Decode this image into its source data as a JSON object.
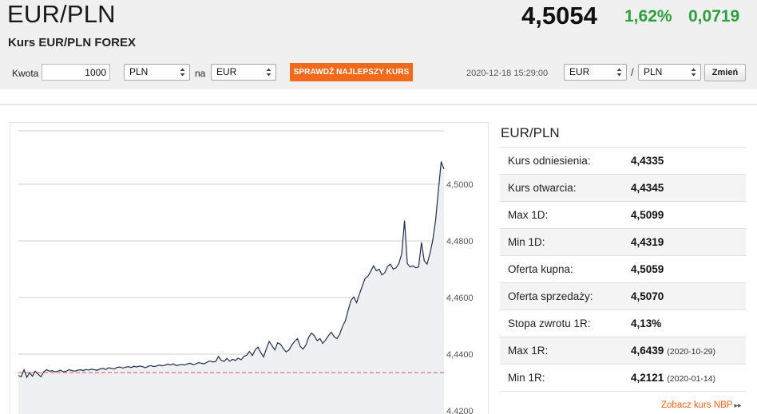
{
  "header": {
    "pair": "EUR/PLN",
    "subtitle": "Kurs EUR/PLN FOREX",
    "rate": "4,5054",
    "change_pct": "1,62%",
    "change_abs": "0,0719",
    "change_color": "#2e9e3e"
  },
  "toolbar": {
    "amount_label": "Kwota",
    "amount_value": "1000",
    "from_currency": "PLN",
    "to_label": "na",
    "to_currency": "EUR",
    "best_rate_button": "SPRAWDŹ NAJLEPSZY KURS",
    "best_rate_color": "#f26b1d",
    "timestamp": "2020-12-18 15:29:00",
    "base_currency": "EUR",
    "separator": "/",
    "quote_currency": "PLN",
    "change_button": "Zmień"
  },
  "stats": {
    "title": "EUR/PLN",
    "rows": [
      {
        "label": "Kurs odniesienia:",
        "value": "4,4335",
        "date": ""
      },
      {
        "label": "Kurs otwarcia:",
        "value": "4,4345",
        "date": ""
      },
      {
        "label": "Max 1D:",
        "value": "4,5099",
        "date": ""
      },
      {
        "label": "Min 1D:",
        "value": "4,4319",
        "date": ""
      },
      {
        "label": "Oferta kupna:",
        "value": "4,5059",
        "date": ""
      },
      {
        "label": "Oferta sprzedaży:",
        "value": "4,5070",
        "date": ""
      },
      {
        "label": "Stopa zwrotu 1R:",
        "value": "4,13%",
        "date": ""
      },
      {
        "label": "Max 1R:",
        "value": "4,6439",
        "date": "(2020-10-29)"
      },
      {
        "label": "Min 1R:",
        "value": "4,2121",
        "date": "(2020-01-14)"
      }
    ],
    "nbp_link": "Zobacz kurs NBP",
    "nbp_arrow": "▸▸"
  },
  "chart_data": {
    "type": "area",
    "title": "",
    "xlabel": "",
    "ylabel": "",
    "ylim": [
      4.42,
      4.51
    ],
    "y_ticks": [
      "4,4200",
      "4,4400",
      "4,4600",
      "4,4800",
      "4,5000"
    ],
    "y_tick_values": [
      4.42,
      4.44,
      4.46,
      4.48,
      4.5
    ],
    "reference_line": 4.4335,
    "reference_color": "#e05050",
    "line_color": "#1f2f4a",
    "fill_color": "#eef0f4",
    "grid": true,
    "series": [
      {
        "values": [
          4.4325,
          4.432,
          4.4345,
          4.4318,
          4.4335,
          4.4322,
          4.434,
          4.433,
          4.432,
          4.4338,
          4.4345,
          4.434,
          4.4342,
          4.4338,
          4.434,
          4.4343,
          4.4338,
          4.434,
          4.4345,
          4.4342,
          4.434,
          4.4343,
          4.4345,
          4.4342,
          4.4346,
          4.4344,
          4.4347,
          4.4345,
          4.4343,
          4.4348,
          4.435,
          4.4346,
          4.4352,
          4.435,
          4.4348,
          4.4353,
          4.4355,
          4.4351,
          4.4354,
          4.4356,
          4.4353,
          4.4357,
          4.4355,
          4.4358,
          4.4356,
          4.4352,
          4.4357,
          4.436,
          4.4356,
          4.4358,
          4.4362,
          4.4359,
          4.4361,
          4.4365,
          4.4362,
          4.4366,
          4.436,
          4.4362,
          4.4364,
          4.4362,
          4.4366,
          4.4368,
          4.4363,
          4.4366,
          4.437,
          4.4368,
          4.4366,
          4.4372,
          4.4376,
          4.4372,
          4.4374,
          4.4392,
          4.4378,
          4.4375,
          4.4385,
          4.4375,
          4.4382,
          4.4378,
          4.4386,
          4.438,
          4.4392,
          4.4396,
          4.441,
          4.4395,
          4.4415,
          4.4425,
          4.4405,
          4.439,
          4.442,
          4.4445,
          4.443,
          4.4415,
          4.444,
          4.4435,
          4.442,
          4.4408,
          4.4415,
          4.4432,
          4.4445,
          4.4455,
          4.4428,
          4.4418,
          4.4432,
          4.446,
          4.4475,
          4.4465,
          4.4448,
          4.4455,
          4.4438,
          4.445,
          4.4465,
          4.4478,
          4.4462,
          4.4455,
          4.447,
          4.4498,
          4.4518,
          4.4555,
          4.459,
          4.4602,
          4.4582,
          4.4612,
          4.464,
          4.4668,
          4.4675,
          4.4692,
          4.4712,
          4.4695,
          4.47,
          4.468,
          4.4688,
          4.471,
          4.4718,
          4.47,
          4.4705,
          4.472,
          4.4755,
          4.4872,
          4.472,
          4.4708,
          4.4712,
          4.4705,
          4.4708,
          4.4795,
          4.473,
          4.4718,
          4.4755,
          4.4802,
          4.487,
          4.4975,
          4.508,
          4.5054
        ]
      }
    ]
  }
}
